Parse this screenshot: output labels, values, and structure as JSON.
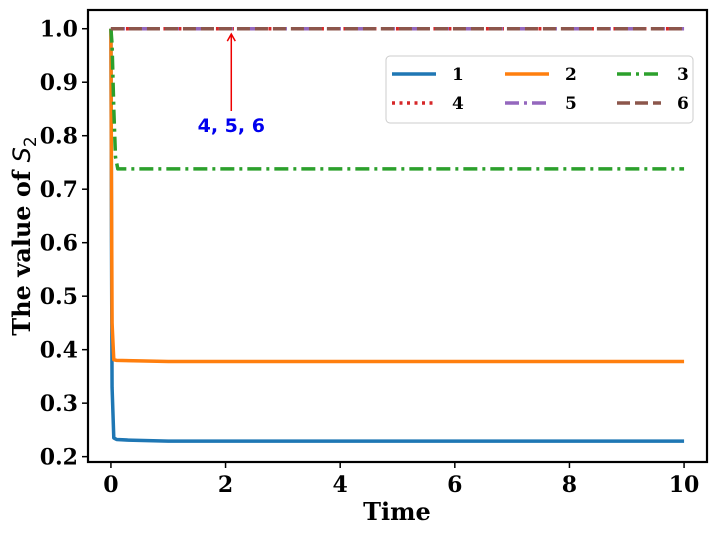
{
  "chart_data": {
    "type": "line",
    "xlabel": "Time",
    "ylabel": "The value of",
    "ylabel_symbol": "S",
    "ylabel_subscript": "2",
    "xlim": [
      -0.4,
      10.4
    ],
    "ylim": [
      0.19,
      1.035
    ],
    "xticks": [
      0,
      2,
      4,
      6,
      8,
      10
    ],
    "yticks": [
      0.2,
      0.3,
      0.4,
      0.5,
      0.6,
      0.7,
      0.8,
      0.9,
      1.0
    ],
    "xtick_labels": [
      "0",
      "2",
      "4",
      "6",
      "8",
      "10"
    ],
    "ytick_labels": [
      "0.2",
      "0.3",
      "0.4",
      "0.5",
      "0.6",
      "0.7",
      "0.8",
      "0.9",
      "1.0"
    ],
    "grid": false,
    "legend_placement": "top-right",
    "legend_columns": 3,
    "series": [
      {
        "name": "1",
        "color": "#1f77b4",
        "dash": "solid",
        "x": [
          0,
          0.01,
          0.02,
          0.05,
          0.1,
          0.3,
          1,
          3,
          10
        ],
        "y": [
          1.0,
          0.6,
          0.33,
          0.235,
          0.232,
          0.231,
          0.229,
          0.229,
          0.229
        ]
      },
      {
        "name": "2",
        "color": "#ff7f0e",
        "dash": "solid",
        "x": [
          0,
          0.01,
          0.02,
          0.05,
          0.1,
          0.5,
          1,
          3,
          10
        ],
        "y": [
          1.0,
          0.7,
          0.45,
          0.381,
          0.38,
          0.379,
          0.378,
          0.378,
          0.378
        ]
      },
      {
        "name": "3",
        "color": "#2ca02c",
        "dash": "dashdot",
        "x": [
          0,
          0.02,
          0.05,
          0.08,
          0.12,
          0.5,
          10
        ],
        "y": [
          1.0,
          0.97,
          0.85,
          0.76,
          0.738,
          0.738,
          0.738
        ]
      },
      {
        "name": "4",
        "color": "#d62728",
        "dash": "dotted",
        "x": [
          0,
          10
        ],
        "y": [
          1.0,
          1.0
        ]
      },
      {
        "name": "5",
        "color": "#9467bd",
        "dash": "dashdot",
        "x": [
          0,
          10
        ],
        "y": [
          1.0,
          1.0
        ]
      },
      {
        "name": "6",
        "color": "#8c564b",
        "dash": "dashed",
        "x": [
          0,
          10
        ],
        "y": [
          1.0,
          1.0
        ]
      }
    ],
    "annotations": [
      {
        "text": "4, 5, 6",
        "color": "#0000ee",
        "arrow_color": "#ee0000",
        "text_x": 2.1,
        "text_y": 0.82,
        "arrow_to_x": 2.1,
        "arrow_to_y": 0.99
      }
    ]
  }
}
